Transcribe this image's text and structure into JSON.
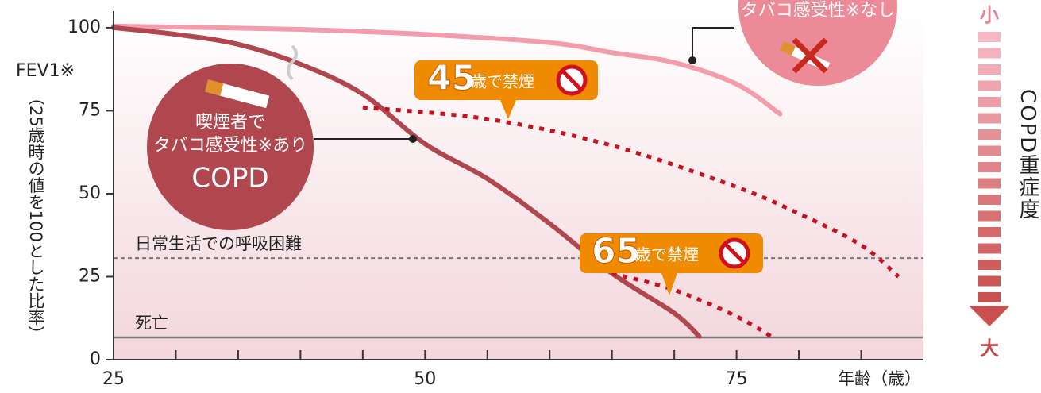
{
  "chart_data": {
    "type": "line",
    "ylabel": "FEV1※",
    "ylabel_note": "（25歳時の値を100とした比率）",
    "xlabel": "年齢（歳）",
    "xlim": [
      25,
      90
    ],
    "xticks": [
      25,
      50,
      75
    ],
    "xminorticks": [
      30,
      35,
      40,
      45,
      55,
      60,
      65,
      70,
      80,
      85
    ],
    "ylim": [
      0,
      105
    ],
    "yticks": [
      0,
      25,
      50,
      75,
      100
    ],
    "series": [
      {
        "color": "#f29cac",
        "style": "solid",
        "x": [
          25,
          40,
          50,
          60,
          65,
          70,
          75,
          78.5
        ],
        "values": [
          100.5,
          99.5,
          98,
          95.5,
          92.5,
          89.5,
          83,
          74
        ]
      },
      {
        "color": "#b0474f",
        "style": "solid",
        "x": [
          25,
          30,
          35,
          40,
          45,
          50,
          55,
          60,
          65,
          70,
          72
        ],
        "values": [
          100,
          98,
          95,
          89,
          80,
          65,
          54.5,
          41,
          26,
          14,
          7
        ]
      },
      {
        "color": "#c8101e",
        "style": "dotted",
        "x": [
          45,
          55,
          65,
          75,
          80,
          85,
          88
        ],
        "values": [
          76,
          72.5,
          64.5,
          52,
          44,
          34.5,
          25
        ]
      },
      {
        "color": "#c8101e",
        "style": "dotted",
        "x": [
          65,
          70,
          75,
          78
        ],
        "values": [
          26,
          21,
          13,
          6.5
        ]
      }
    ],
    "reference_lines": [
      {
        "label": "日常生活での呼吸困難",
        "value": 30.6,
        "style": "dashed"
      },
      {
        "label": "死亡",
        "value": 6.7,
        "style": "solid"
      }
    ],
    "annotations": {
      "non_susceptible": "タバコ感受性※なし",
      "smoker": [
        "喫煙者で",
        "タバコ感受性※あり",
        "COPD"
      ],
      "quit45": {
        "age": "45",
        "text": "歳で禁煙"
      },
      "quit65": {
        "age": "65",
        "text": "歳で禁煙"
      }
    },
    "severity_scale": {
      "top": "小",
      "label": "COPD重症度",
      "bottom": "大"
    }
  }
}
